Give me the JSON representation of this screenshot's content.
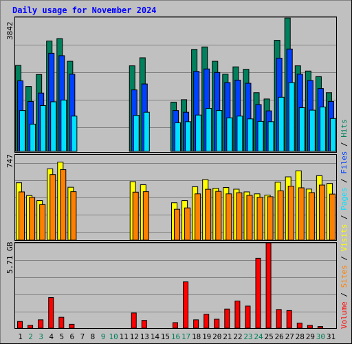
{
  "title": "Daily usage for November 2024",
  "colors": {
    "title": "#0000ff",
    "background": "#c0c0c0",
    "grid": "#808080",
    "hits": "#00805c",
    "files": "#0040ff",
    "pages": "#00e0ff",
    "visits": "#ffff00",
    "sites": "#ff8000",
    "volume": "#ff0000",
    "weekend": "#00805c",
    "weekday": "#000000"
  },
  "chart_data": [
    {
      "type": "bar",
      "panel": "hits-files-pages",
      "ylabel_max": "3842",
      "ylim": [
        0,
        3842
      ],
      "grid": true,
      "categories": [
        "1",
        "2",
        "3",
        "4",
        "5",
        "6",
        "7",
        "8",
        "9",
        "10",
        "11",
        "12",
        "13",
        "14",
        "15",
        "16",
        "17",
        "18",
        "19",
        "20",
        "21",
        "22",
        "23",
        "24",
        "25",
        "26",
        "27",
        "28",
        "29",
        "30",
        "31"
      ],
      "series": [
        {
          "name": "Hits",
          "values": [
            2460,
            1860,
            2200,
            3160,
            3230,
            2580,
            0,
            0,
            0,
            0,
            0,
            2450,
            2680,
            0,
            0,
            1410,
            1480,
            2920,
            2990,
            2580,
            2210,
            2420,
            2350,
            1680,
            1500,
            3180,
            3820,
            2450,
            2300,
            2140,
            1680
          ]
        },
        {
          "name": "Files",
          "values": [
            2020,
            1430,
            1670,
            2810,
            2740,
            2210,
            0,
            0,
            0,
            0,
            0,
            1760,
            1930,
            0,
            0,
            1170,
            1120,
            2290,
            2360,
            2260,
            1970,
            2040,
            1950,
            1340,
            1160,
            2670,
            2930,
            2210,
            2030,
            1800,
            1430
          ]
        },
        {
          "name": "Pages",
          "values": [
            1170,
            780,
            1310,
            1420,
            1470,
            1010,
            0,
            0,
            0,
            0,
            0,
            1030,
            1120,
            0,
            0,
            820,
            850,
            1040,
            1230,
            1170,
            960,
            1010,
            930,
            860,
            850,
            1550,
            1970,
            1250,
            1180,
            1270,
            940
          ]
        }
      ]
    },
    {
      "type": "bar",
      "panel": "visits-sites",
      "ylabel_max": "747",
      "ylim": [
        0,
        747
      ],
      "grid": true,
      "categories": [
        "1",
        "2",
        "3",
        "4",
        "5",
        "6",
        "7",
        "8",
        "9",
        "10",
        "11",
        "12",
        "13",
        "14",
        "15",
        "16",
        "17",
        "18",
        "19",
        "20",
        "21",
        "22",
        "23",
        "24",
        "25",
        "26",
        "27",
        "28",
        "29",
        "30",
        "31"
      ],
      "series": [
        {
          "name": "Visits",
          "values": [
            502,
            390,
            346,
            624,
            683,
            463,
            0,
            0,
            0,
            0,
            0,
            512,
            485,
            0,
            0,
            327,
            346,
            467,
            530,
            454,
            461,
            446,
            422,
            405,
            394,
            507,
            554,
            607,
            447,
            564,
            496
          ]
        },
        {
          "name": "Sites",
          "values": [
            422,
            374,
            311,
            574,
            617,
            424,
            0,
            0,
            0,
            0,
            0,
            420,
            424,
            0,
            0,
            270,
            282,
            405,
            445,
            427,
            405,
            415,
            392,
            375,
            380,
            432,
            473,
            458,
            416,
            482,
            403
          ]
        }
      ]
    },
    {
      "type": "bar",
      "panel": "volume",
      "ylabel_max": "5.71 GB",
      "ylim": [
        0,
        5.71
      ],
      "grid": true,
      "categories": [
        "1",
        "2",
        "3",
        "4",
        "5",
        "6",
        "7",
        "8",
        "9",
        "10",
        "11",
        "12",
        "13",
        "14",
        "15",
        "16",
        "17",
        "18",
        "19",
        "20",
        "21",
        "22",
        "23",
        "24",
        "25",
        "26",
        "27",
        "28",
        "29",
        "30",
        "31"
      ],
      "series": [
        {
          "name": "Volume",
          "values": [
            0.45,
            0.19,
            0.56,
            2.05,
            0.73,
            0.26,
            0,
            0,
            0,
            0,
            0,
            1.02,
            0.52,
            0,
            0,
            0.37,
            3.1,
            0.56,
            0.93,
            0.6,
            1.28,
            1.82,
            1.48,
            4.68,
            5.71,
            1.25,
            1.18,
            0.34,
            0.19,
            0.11,
            0
          ]
        }
      ]
    }
  ],
  "right_legend": [
    {
      "text": "Volume",
      "color": "#ff0000"
    },
    {
      "text": "Sites",
      "color": "#ff8000"
    },
    {
      "text": "Visits",
      "color": "#ffff00"
    },
    {
      "text": "Pages",
      "color": "#00e0ff"
    },
    {
      "text": "Files",
      "color": "#0040ff"
    },
    {
      "text": "Hits",
      "color": "#00805c"
    }
  ],
  "day_labels": [
    {
      "d": "1",
      "weekend": false
    },
    {
      "d": "2",
      "weekend": true
    },
    {
      "d": "3",
      "weekend": true
    },
    {
      "d": "4",
      "weekend": false
    },
    {
      "d": "5",
      "weekend": false
    },
    {
      "d": "6",
      "weekend": false
    },
    {
      "d": "7",
      "weekend": false
    },
    {
      "d": "8",
      "weekend": false
    },
    {
      "d": "9",
      "weekend": true
    },
    {
      "d": "10",
      "weekend": true
    },
    {
      "d": "11",
      "weekend": false
    },
    {
      "d": "12",
      "weekend": false
    },
    {
      "d": "13",
      "weekend": false
    },
    {
      "d": "14",
      "weekend": false
    },
    {
      "d": "15",
      "weekend": false
    },
    {
      "d": "16",
      "weekend": true
    },
    {
      "d": "17",
      "weekend": true
    },
    {
      "d": "18",
      "weekend": false
    },
    {
      "d": "19",
      "weekend": false
    },
    {
      "d": "20",
      "weekend": false
    },
    {
      "d": "21",
      "weekend": false
    },
    {
      "d": "22",
      "weekend": false
    },
    {
      "d": "23",
      "weekend": true
    },
    {
      "d": "24",
      "weekend": true
    },
    {
      "d": "25",
      "weekend": false
    },
    {
      "d": "26",
      "weekend": false
    },
    {
      "d": "27",
      "weekend": false
    },
    {
      "d": "28",
      "weekend": false
    },
    {
      "d": "29",
      "weekend": false
    },
    {
      "d": "30",
      "weekend": true
    },
    {
      "d": "31",
      "weekend": false
    }
  ]
}
